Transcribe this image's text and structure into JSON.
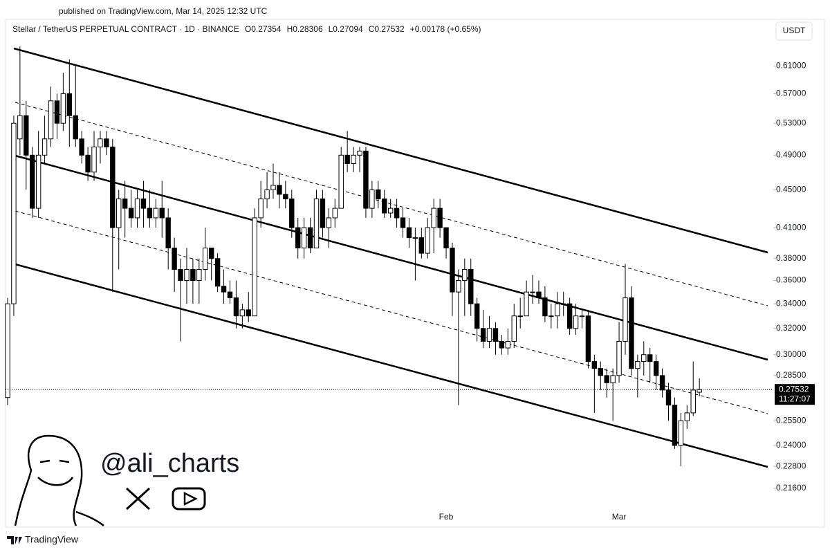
{
  "published": "published on TradingView.com, Mar 14, 2025 12:32 UTC",
  "header": {
    "symbol": "Stellar / TetherUS PERPETUAL CONTRACT · 1D · BINANCE",
    "open": "O0.27354",
    "high": "H0.28306",
    "low": "L0.27094",
    "close": "C0.27532",
    "change": "+0.00178 (+0.65%)"
  },
  "currency": "USDT",
  "watermark": "@ali_charts",
  "footer": "TradingView",
  "chart_data": {
    "type": "candlestick",
    "log_scale": true,
    "up_color": "#ffffff",
    "down_color": "#000000",
    "categories": [
      null,
      null,
      null,
      null,
      null,
      null,
      null,
      null,
      null,
      null,
      null,
      null,
      null,
      null,
      null,
      null,
      null,
      null,
      null,
      null,
      null,
      null,
      null,
      null,
      null,
      null,
      null,
      null,
      null,
      null,
      null,
      null,
      null,
      null,
      null,
      null,
      null,
      null,
      null,
      null,
      null,
      null,
      null,
      null,
      null,
      null,
      null,
      null,
      null,
      null,
      null,
      null,
      null,
      null,
      null,
      null,
      null,
      null,
      null,
      null,
      null,
      null,
      null,
      null,
      null,
      null,
      null,
      null,
      null,
      null,
      null,
      "Feb",
      null,
      null,
      null,
      null,
      null,
      null,
      null,
      null,
      null,
      null,
      null,
      null,
      null,
      null,
      null,
      null,
      null,
      null,
      null,
      null,
      null,
      null,
      null,
      null,
      null,
      null,
      null,
      "Mar",
      null,
      null,
      null,
      null,
      null,
      null,
      null,
      null,
      null,
      null,
      null,
      null,
      null
    ],
    "open": [
      0.27,
      0.34,
      0.51,
      0.54,
      0.49,
      0.43,
      0.49,
      0.51,
      0.56,
      0.53,
      0.57,
      0.54,
      0.51,
      0.49,
      0.47,
      0.5,
      0.51,
      0.5,
      0.41,
      0.44,
      0.43,
      0.42,
      0.44,
      0.43,
      0.42,
      0.43,
      0.42,
      0.39,
      0.37,
      0.36,
      0.37,
      0.36,
      0.37,
      0.39,
      0.38,
      0.355,
      0.35,
      0.345,
      0.33,
      0.335,
      0.33,
      0.42,
      0.44,
      0.45,
      0.455,
      0.445,
      0.44,
      0.41,
      0.39,
      0.41,
      0.39,
      0.44,
      0.41,
      0.42,
      0.43,
      0.49,
      0.48,
      0.49,
      0.495,
      0.43,
      0.45,
      0.44,
      0.425,
      0.43,
      0.42,
      0.41,
      0.4,
      0.4,
      0.385,
      0.41,
      0.43,
      0.41,
      0.39,
      0.35,
      0.36,
      0.37,
      0.34,
      0.32,
      0.31,
      0.32,
      0.31,
      0.305,
      0.31,
      0.33,
      0.33,
      0.35,
      0.35,
      0.345,
      0.33,
      0.33,
      0.34,
      0.34,
      0.32,
      0.33,
      0.33,
      0.295,
      0.29,
      0.285,
      0.28,
      0.285,
      0.31,
      0.345,
      0.29,
      0.295,
      0.3,
      0.295,
      0.285,
      0.275,
      0.265,
      0.24,
      0.255,
      0.26,
      0.27354
    ],
    "high": [
      0.345,
      0.54,
      0.64,
      0.56,
      0.5,
      0.52,
      0.54,
      0.58,
      0.57,
      0.6,
      0.62,
      0.61,
      0.52,
      0.5,
      0.52,
      0.52,
      0.52,
      0.51,
      0.45,
      0.46,
      0.45,
      0.45,
      0.46,
      0.45,
      0.44,
      0.46,
      0.43,
      0.4,
      0.38,
      0.39,
      0.38,
      0.38,
      0.41,
      0.39,
      0.385,
      0.37,
      0.36,
      0.36,
      0.34,
      0.35,
      0.43,
      0.46,
      0.47,
      0.48,
      0.47,
      0.46,
      0.45,
      0.42,
      0.42,
      0.42,
      0.45,
      0.45,
      0.43,
      0.44,
      0.5,
      0.52,
      0.5,
      0.5,
      0.5,
      0.46,
      0.46,
      0.45,
      0.44,
      0.44,
      0.43,
      0.42,
      0.41,
      0.41,
      0.42,
      0.44,
      0.44,
      0.41,
      0.395,
      0.37,
      0.38,
      0.38,
      0.345,
      0.335,
      0.33,
      0.325,
      0.315,
      0.32,
      0.34,
      0.345,
      0.36,
      0.365,
      0.36,
      0.355,
      0.34,
      0.35,
      0.35,
      0.345,
      0.34,
      0.335,
      0.335,
      0.3,
      0.295,
      0.29,
      0.29,
      0.325,
      0.375,
      0.355,
      0.3,
      0.31,
      0.305,
      0.3,
      0.29,
      0.28,
      0.27,
      0.26,
      0.265,
      0.295,
      0.28306
    ],
    "low": [
      0.265,
      0.33,
      0.49,
      0.45,
      0.42,
      0.42,
      0.48,
      0.5,
      0.51,
      0.52,
      0.5,
      0.5,
      0.48,
      0.46,
      0.46,
      0.48,
      0.49,
      0.35,
      0.37,
      0.4,
      0.41,
      0.41,
      0.41,
      0.41,
      0.41,
      0.4,
      0.37,
      0.35,
      0.31,
      0.34,
      0.34,
      0.34,
      0.36,
      0.36,
      0.35,
      0.34,
      0.34,
      0.32,
      0.32,
      0.325,
      0.33,
      0.41,
      0.43,
      0.44,
      0.43,
      0.43,
      0.4,
      0.38,
      0.38,
      0.385,
      0.39,
      0.4,
      0.39,
      0.41,
      0.43,
      0.47,
      0.47,
      0.47,
      0.42,
      0.42,
      0.43,
      0.42,
      0.42,
      0.41,
      0.4,
      0.39,
      0.36,
      0.38,
      0.38,
      0.385,
      0.4,
      0.38,
      0.33,
      0.265,
      0.33,
      0.33,
      0.31,
      0.305,
      0.305,
      0.3,
      0.3,
      0.3,
      0.305,
      0.32,
      0.33,
      0.34,
      0.34,
      0.325,
      0.32,
      0.32,
      0.33,
      0.315,
      0.315,
      0.32,
      0.29,
      0.26,
      0.275,
      0.27,
      0.255,
      0.28,
      0.3,
      0.285,
      0.27,
      0.285,
      0.28,
      0.275,
      0.27,
      0.255,
      0.238,
      0.228,
      0.25,
      0.258,
      0.27094
    ],
    "close": [
      0.34,
      0.53,
      0.54,
      0.49,
      0.43,
      0.49,
      0.51,
      0.56,
      0.53,
      0.57,
      0.54,
      0.51,
      0.49,
      0.47,
      0.5,
      0.51,
      0.5,
      0.41,
      0.44,
      0.43,
      0.42,
      0.44,
      0.43,
      0.42,
      0.43,
      0.42,
      0.39,
      0.37,
      0.36,
      0.37,
      0.36,
      0.37,
      0.39,
      0.38,
      0.355,
      0.35,
      0.345,
      0.33,
      0.335,
      0.33,
      0.42,
      0.44,
      0.45,
      0.455,
      0.445,
      0.44,
      0.41,
      0.39,
      0.41,
      0.39,
      0.44,
      0.41,
      0.42,
      0.43,
      0.49,
      0.48,
      0.49,
      0.495,
      0.43,
      0.45,
      0.44,
      0.425,
      0.43,
      0.42,
      0.41,
      0.4,
      0.4,
      0.385,
      0.41,
      0.43,
      0.41,
      0.39,
      0.35,
      0.36,
      0.37,
      0.34,
      0.32,
      0.31,
      0.32,
      0.31,
      0.305,
      0.31,
      0.33,
      0.33,
      0.35,
      0.35,
      0.345,
      0.33,
      0.33,
      0.34,
      0.34,
      0.32,
      0.33,
      0.33,
      0.295,
      0.29,
      0.285,
      0.28,
      0.285,
      0.31,
      0.345,
      0.29,
      0.295,
      0.3,
      0.295,
      0.285,
      0.275,
      0.265,
      0.24,
      0.255,
      0.26,
      0.275,
      0.27532
    ],
    "ylim": [
      0.197,
      0.648
    ],
    "yticks": [
      {
        "value": 0.61,
        "label": "0.61000"
      },
      {
        "value": 0.57,
        "label": "0.57000"
      },
      {
        "value": 0.53,
        "label": "0.53000"
      },
      {
        "value": 0.49,
        "label": "0.49000"
      },
      {
        "value": 0.45,
        "label": "0.45000"
      },
      {
        "value": 0.41,
        "label": "0.41000"
      },
      {
        "value": 0.38,
        "label": "0.38000"
      },
      {
        "value": 0.36,
        "label": "0.36000"
      },
      {
        "value": 0.34,
        "label": "0.34000"
      },
      {
        "value": 0.32,
        "label": "0.32000"
      },
      {
        "value": 0.3,
        "label": "0.30000"
      },
      {
        "value": 0.285,
        "label": "0.28500"
      },
      {
        "value": 0.255,
        "label": "0.25500"
      },
      {
        "value": 0.24,
        "label": "0.24000"
      },
      {
        "value": 0.228,
        "label": "0.22800"
      },
      {
        "value": 0.216,
        "label": "0.21600"
      }
    ],
    "last_price": {
      "value": 0.27532,
      "label": "0.27532"
    },
    "countdown": "11:27:07"
  }
}
